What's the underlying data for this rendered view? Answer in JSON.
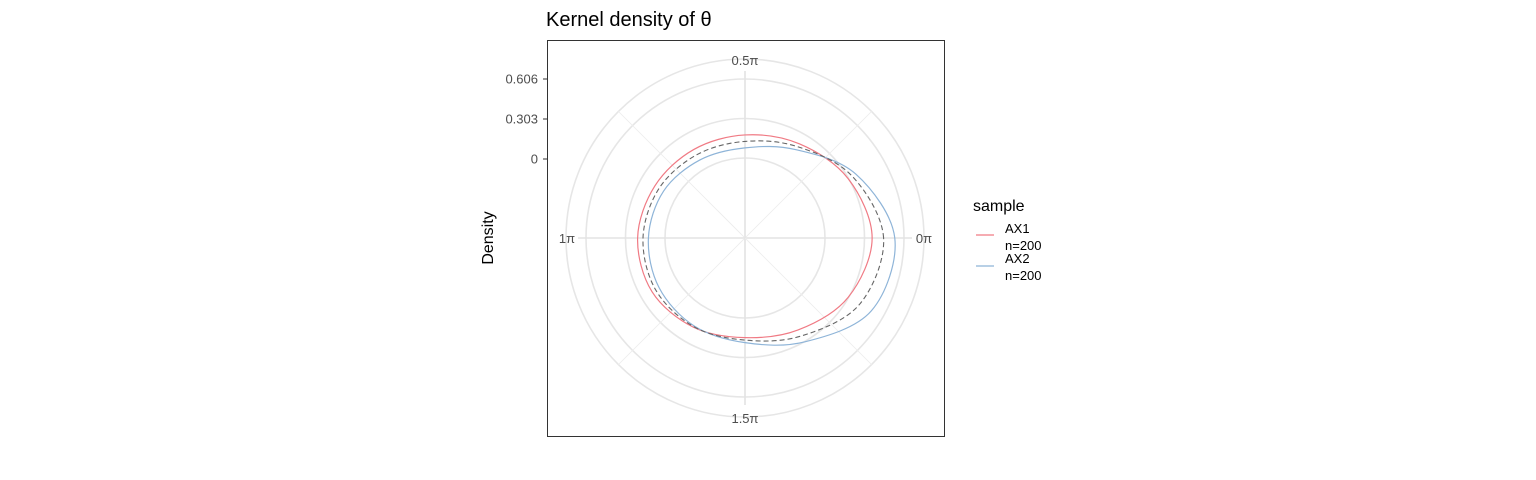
{
  "chart_data": {
    "type": "line",
    "coord": "polar",
    "title": "Kernel density of θ",
    "ylabel": "Density",
    "radial_ticks": [
      "0.606",
      "0.303",
      "0"
    ],
    "radial_tick_values": [
      0.606,
      0.303,
      0
    ],
    "angle_ticks": [
      {
        "label": "0π",
        "value": 0
      },
      {
        "label": "0.5π",
        "value": 1.5708
      },
      {
        "label": "1π",
        "value": 3.1416
      },
      {
        "label": "1.5π",
        "value": 4.7124
      }
    ],
    "grid": true,
    "legend": {
      "title": "sample",
      "position": "right",
      "entries": [
        {
          "line1": "AX1",
          "line2": "n=200",
          "color": "#f07a84"
        },
        {
          "line1": "AX2",
          "line2": "n=200",
          "color": "#8eb4d8"
        }
      ]
    },
    "theta": [
      0,
      0.5236,
      1.0472,
      1.5708,
      2.0944,
      2.618,
      3.1416,
      3.6652,
      4.1888,
      4.7124,
      5.236,
      5.7596
    ],
    "series": [
      {
        "name": "AX1",
        "color": "#f07a84",
        "dash": "solid",
        "values": [
          0.358,
          0.296,
          0.218,
          0.175,
          0.169,
          0.183,
          0.208,
          0.208,
          0.175,
          0.149,
          0.199,
          0.296
        ]
      },
      {
        "name": "AX2",
        "color": "#8eb4d8",
        "dash": "solid",
        "values": [
          0.53,
          0.364,
          0.167,
          0.077,
          0.077,
          0.106,
          0.126,
          0.146,
          0.164,
          0.187,
          0.303,
          0.5
        ]
      },
      {
        "name": "",
        "color": "#666666",
        "dash": "dashed",
        "values": [
          0.445,
          0.332,
          0.193,
          0.126,
          0.123,
          0.146,
          0.167,
          0.177,
          0.17,
          0.168,
          0.251,
          0.398
        ]
      }
    ]
  }
}
